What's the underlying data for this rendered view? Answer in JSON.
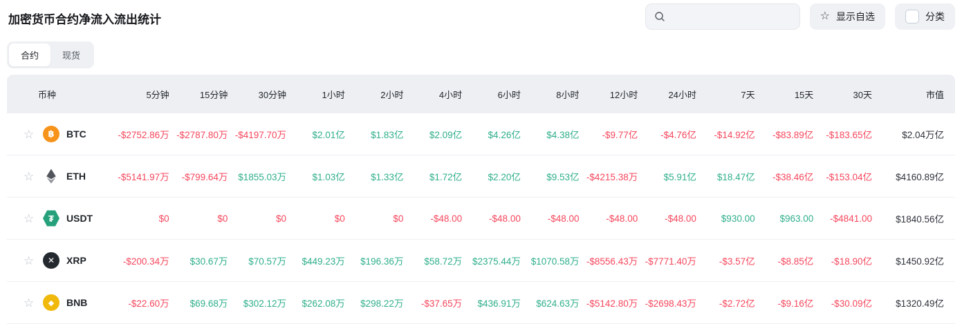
{
  "title": "加密货币合约净流入流出统计",
  "toolbar": {
    "search": {
      "placeholder": "",
      "value": ""
    },
    "favorites_button": "显示自选",
    "category_button": "分类"
  },
  "tabs": {
    "items": [
      {
        "label": "合约",
        "active": true
      },
      {
        "label": "现货",
        "active": false
      }
    ]
  },
  "table": {
    "columns": [
      "币种",
      "5分钟",
      "15分钟",
      "30分钟",
      "1小时",
      "2小时",
      "4小时",
      "6小时",
      "8小时",
      "12小时",
      "24小时",
      "7天",
      "15天",
      "30天",
      "市值"
    ],
    "rows": [
      {
        "symbol": "BTC",
        "icon": "btc",
        "values": [
          "-$2752.86万",
          "-$2787.80万",
          "-$4197.70万",
          "$2.01亿",
          "$1.83亿",
          "$2.09亿",
          "$4.26亿",
          "$4.38亿",
          "-$9.77亿",
          "-$4.76亿",
          "-$14.92亿",
          "-$83.89亿",
          "-$183.65亿"
        ],
        "market_cap": "$2.04万亿"
      },
      {
        "symbol": "ETH",
        "icon": "eth",
        "values": [
          "-$5141.97万",
          "-$799.64万",
          "$1855.03万",
          "$1.03亿",
          "$1.33亿",
          "$1.72亿",
          "$2.20亿",
          "$9.53亿",
          "-$4215.38万",
          "$5.91亿",
          "$18.47亿",
          "-$38.46亿",
          "-$153.04亿"
        ],
        "market_cap": "$4160.89亿"
      },
      {
        "symbol": "USDT",
        "icon": "usdt",
        "values": [
          "$0",
          "$0",
          "$0",
          "$0",
          "$0",
          "-$48.00",
          "-$48.00",
          "-$48.00",
          "-$48.00",
          "-$48.00",
          "$930.00",
          "$963.00",
          "-$4841.00"
        ],
        "market_cap": "$1840.56亿"
      },
      {
        "symbol": "XRP",
        "icon": "xrp",
        "values": [
          "-$200.34万",
          "$30.67万",
          "$70.57万",
          "$449.23万",
          "$196.36万",
          "$58.72万",
          "$2375.44万",
          "$1070.58万",
          "-$8556.43万",
          "-$7771.40万",
          "-$3.57亿",
          "-$8.85亿",
          "-$18.90亿"
        ],
        "market_cap": "$1450.92亿"
      },
      {
        "symbol": "BNB",
        "icon": "bnb",
        "values": [
          "-$22.60万",
          "$69.68万",
          "$302.12万",
          "$262.08万",
          "$298.22万",
          "-$37.65万",
          "$436.91万",
          "$624.63万",
          "-$5142.80万",
          "-$2698.43万",
          "-$2.72亿",
          "-$9.16亿",
          "-$30.09亿"
        ],
        "market_cap": "$1320.49亿"
      }
    ]
  },
  "icons": {
    "btc": {
      "shape": "circle",
      "bg": "#F7931A",
      "fg": "#ffffff",
      "glyph": "฿"
    },
    "eth": {
      "shape": "eth-diamond",
      "bg": "",
      "fg": "#53555c",
      "fg2": "#8b8e95",
      "glyph": ""
    },
    "usdt": {
      "shape": "hexagon",
      "bg": "#26A17B",
      "fg": "#ffffff",
      "glyph": "₮"
    },
    "xrp": {
      "shape": "circle",
      "bg": "#23292F",
      "fg": "#ffffff",
      "glyph": "✕"
    },
    "bnb": {
      "shape": "circle",
      "bg": "#F0B90B",
      "fg": "#ffffff",
      "glyph": "◆"
    }
  },
  "colors": {
    "positive": "#2EAE8B",
    "negative": "#F5465C",
    "market_cap": "#2E323B"
  }
}
